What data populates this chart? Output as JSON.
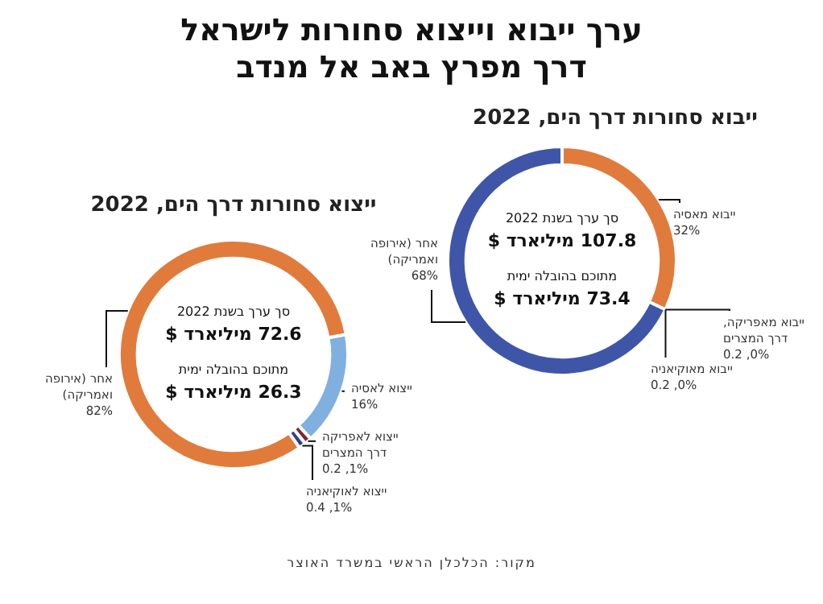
{
  "chart_data": [
    {
      "type": "other",
      "title": "ערך ייבוא וייצוא סחורות לישראל\nדרך מפרץ באב אל מנדב",
      "annotations": [
        "מקור: הכלכלן הראשי במשרד האוצר"
      ]
    },
    {
      "type": "donut",
      "title": "ייבוא סחורות דרך הים, 2022",
      "categories": [
        "ייבוא מאסיה",
        "ייבוא מאפריקה, דרך המצרים",
        "ייבוא מאוקיאניה",
        "אחר (אירופה ואמריקה)"
      ],
      "values": [
        32,
        0,
        0,
        68
      ],
      "colors": [
        "#e07b3c",
        "#7a2a3a",
        "#2d3f8c",
        "#3f56a8"
      ],
      "value_labels": [
        "32%",
        "0%, 0.2",
        "0%, 0.2",
        "68%"
      ],
      "annotations": [
        "סך ערך בשנת 2022",
        "107.8 מיליארד $",
        "מתוכם בהובלה ימית",
        "73.4 מיליארד $"
      ]
    },
    {
      "type": "donut",
      "title": "ייצוא סחורות דרך הים, 2022",
      "categories": [
        "ייצוא לאסיה",
        "ייצוא לאפריקה דרך המצרים",
        "ייצוא לאוקיאניה",
        "אחר (אירופה ואמריקה)"
      ],
      "values": [
        16,
        1,
        1,
        82
      ],
      "colors": [
        "#7fb0e0",
        "#7a2a3a",
        "#2d3f8c",
        "#e07b3c"
      ],
      "value_labels": [
        "16%",
        "1%, 0.2",
        "1%, 0.4",
        "82%"
      ],
      "annotations": [
        "סך ערך בשנת 2022",
        "72.6 מיליארד $",
        "מתוכם בהובלה ימית",
        "26.3 מיליארד $"
      ]
    }
  ]
}
